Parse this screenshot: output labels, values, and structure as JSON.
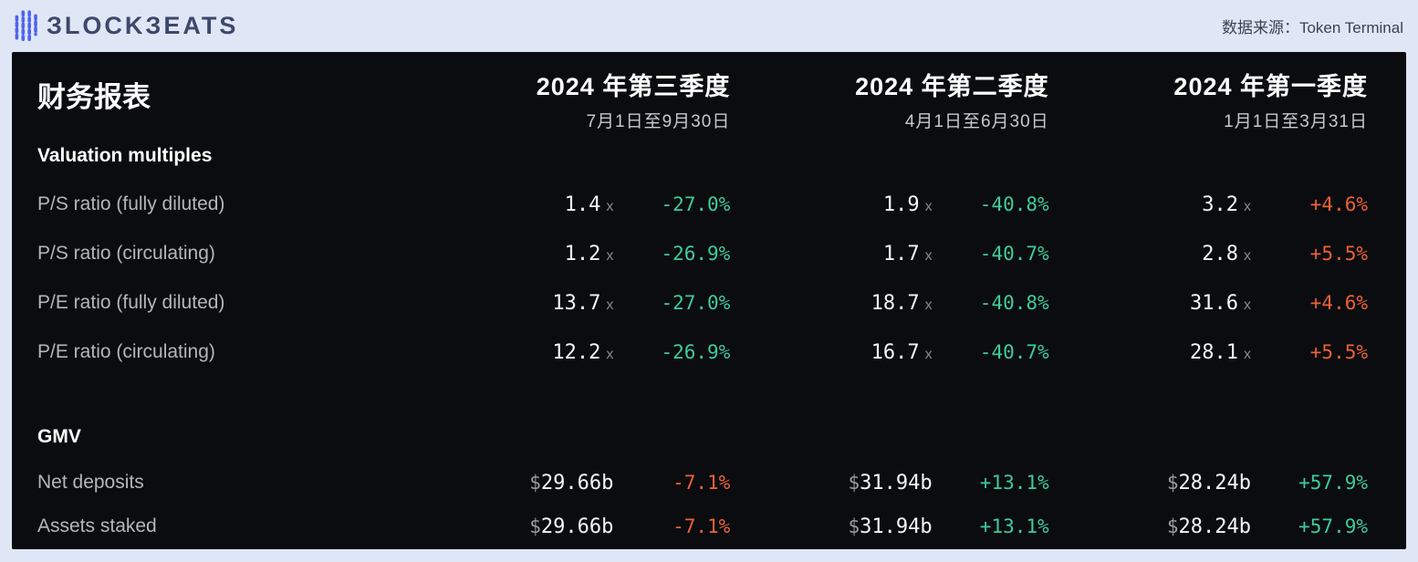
{
  "colors": {
    "green": "#3ecd97",
    "orange": "#ec6135",
    "panel_bg": "#0b0c10",
    "page_bg": "#dfe7f6",
    "logo_blue": "#4f63ef"
  },
  "topbar": {
    "logo_wordmark": "ЗLOCKЗEATS",
    "source_label": "数据来源：Token Terminal"
  },
  "table": {
    "title": "财务报表",
    "quarters": [
      {
        "title": "2024 年第三季度",
        "range": "7月1日至9月30日"
      },
      {
        "title": "2024 年第二季度",
        "range": "4月1日至6月30日"
      },
      {
        "title": "2024 年第一季度",
        "range": "1月1日至3月31日"
      }
    ],
    "sections": [
      {
        "heading": "Valuation multiples",
        "style": "valuation",
        "rows": [
          {
            "label": "P/S ratio (fully diluted)",
            "cells": [
              {
                "prefix": "",
                "value": "1.4",
                "suffix": "x",
                "change": "-27.0%",
                "color": "green"
              },
              {
                "prefix": "",
                "value": "1.9",
                "suffix": "x",
                "change": "-40.8%",
                "color": "green"
              },
              {
                "prefix": "",
                "value": "3.2",
                "suffix": "x",
                "change": "+4.6%",
                "color": "orange"
              }
            ]
          },
          {
            "label": "P/S ratio (circulating)",
            "cells": [
              {
                "prefix": "",
                "value": "1.2",
                "suffix": "x",
                "change": "-26.9%",
                "color": "green"
              },
              {
                "prefix": "",
                "value": "1.7",
                "suffix": "x",
                "change": "-40.7%",
                "color": "green"
              },
              {
                "prefix": "",
                "value": "2.8",
                "suffix": "x",
                "change": "+5.5%",
                "color": "orange"
              }
            ]
          },
          {
            "label": "P/E ratio (fully diluted)",
            "cells": [
              {
                "prefix": "",
                "value": "13.7",
                "suffix": "x",
                "change": "-27.0%",
                "color": "green"
              },
              {
                "prefix": "",
                "value": "18.7",
                "suffix": "x",
                "change": "-40.8%",
                "color": "green"
              },
              {
                "prefix": "",
                "value": "31.6",
                "suffix": "x",
                "change": "+4.6%",
                "color": "orange"
              }
            ]
          },
          {
            "label": "P/E ratio (circulating)",
            "cells": [
              {
                "prefix": "",
                "value": "12.2",
                "suffix": "x",
                "change": "-26.9%",
                "color": "green"
              },
              {
                "prefix": "",
                "value": "16.7",
                "suffix": "x",
                "change": "-40.7%",
                "color": "green"
              },
              {
                "prefix": "",
                "value": "28.1",
                "suffix": "x",
                "change": "+5.5%",
                "color": "orange"
              }
            ]
          }
        ]
      },
      {
        "heading": "GMV",
        "style": "gmv",
        "rows": [
          {
            "label": "Net deposits",
            "cells": [
              {
                "prefix": "$",
                "value": "29.66b",
                "suffix": "",
                "change": "-7.1%",
                "color": "orange"
              },
              {
                "prefix": "$",
                "value": "31.94b",
                "suffix": "",
                "change": "+13.1%",
                "color": "green"
              },
              {
                "prefix": "$",
                "value": "28.24b",
                "suffix": "",
                "change": "+57.9%",
                "color": "green"
              }
            ]
          },
          {
            "label": "Assets staked",
            "cells": [
              {
                "prefix": "$",
                "value": "29.66b",
                "suffix": "",
                "change": "-7.1%",
                "color": "orange"
              },
              {
                "prefix": "$",
                "value": "31.94b",
                "suffix": "",
                "change": "+13.1%",
                "color": "green"
              },
              {
                "prefix": "$",
                "value": "28.24b",
                "suffix": "",
                "change": "+57.9%",
                "color": "green"
              }
            ]
          }
        ]
      }
    ]
  },
  "chart_data": {
    "type": "table",
    "title": "财务报表",
    "source": "数据来源：Token Terminal",
    "columns": [
      "2024 年第三季度 (7月1日至9月30日)",
      "2024 年第二季度 (4月1日至6月30日)",
      "2024 年第一季度 (1月1日至3月31日)"
    ],
    "rows": [
      {
        "section": "Valuation multiples",
        "metric": "P/S ratio (fully diluted)",
        "values": [
          "1.4x",
          "1.9x",
          "3.2x"
        ],
        "changes": [
          "-27.0%",
          "-40.8%",
          "+4.6%"
        ]
      },
      {
        "section": "Valuation multiples",
        "metric": "P/S ratio (circulating)",
        "values": [
          "1.2x",
          "1.7x",
          "2.8x"
        ],
        "changes": [
          "-26.9%",
          "-40.7%",
          "+5.5%"
        ]
      },
      {
        "section": "Valuation multiples",
        "metric": "P/E ratio (fully diluted)",
        "values": [
          "13.7x",
          "18.7x",
          "31.6x"
        ],
        "changes": [
          "-27.0%",
          "-40.8%",
          "+4.6%"
        ]
      },
      {
        "section": "Valuation multiples",
        "metric": "P/E ratio (circulating)",
        "values": [
          "12.2x",
          "16.7x",
          "28.1x"
        ],
        "changes": [
          "-26.9%",
          "-40.7%",
          "+5.5%"
        ]
      },
      {
        "section": "GMV",
        "metric": "Net deposits",
        "values": [
          "$29.66b",
          "$31.94b",
          "$28.24b"
        ],
        "changes": [
          "-7.1%",
          "+13.1%",
          "+57.9%"
        ]
      },
      {
        "section": "GMV",
        "metric": "Assets staked",
        "values": [
          "$29.66b",
          "$31.94b",
          "$28.24b"
        ],
        "changes": [
          "-7.1%",
          "+13.1%",
          "+57.9%"
        ]
      }
    ]
  }
}
